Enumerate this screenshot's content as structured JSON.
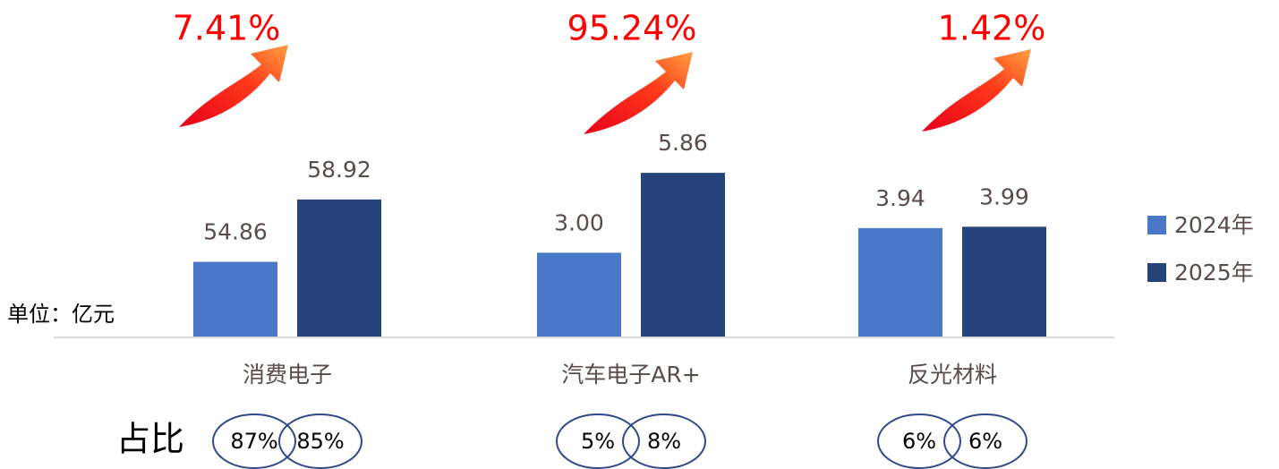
{
  "unit_label": "单位：亿元",
  "share_label": "占比",
  "chart_data": [
    {
      "type": "bar",
      "categories": [
        "消费电子"
      ],
      "ylim": [
        50,
        62
      ],
      "annotation": "7.41%",
      "shares": [
        "87%",
        "85%"
      ],
      "series": [
        {
          "name": "2024年",
          "color": "#4a78c8",
          "values": [
            54.86
          ],
          "value_labels": [
            "54.86"
          ]
        },
        {
          "name": "2025年",
          "color": "#254479",
          "values": [
            58.92
          ],
          "value_labels": [
            "58.92"
          ]
        }
      ]
    },
    {
      "type": "bar",
      "categories": [
        "汽车电子AR+"
      ],
      "ylim": [
        0,
        6.6
      ],
      "annotation": "95.24%",
      "shares": [
        "5%",
        "8%"
      ],
      "series": [
        {
          "name": "2024年",
          "color": "#4a78c8",
          "values": [
            3
          ],
          "value_labels": [
            "3.00"
          ]
        },
        {
          "name": "2025年",
          "color": "#254479",
          "values": [
            5.86
          ],
          "value_labels": [
            "5.86"
          ]
        }
      ]
    },
    {
      "type": "bar",
      "categories": [
        "反光材料"
      ],
      "ylim": [
        0,
        6.7
      ],
      "annotation": "1.42%",
      "shares": [
        "6%",
        "6%"
      ],
      "series": [
        {
          "name": "2024年",
          "color": "#4a78c8",
          "values": [
            3.94
          ],
          "value_labels": [
            "3.94"
          ]
        },
        {
          "name": "2025年",
          "color": "#254479",
          "values": [
            3.99
          ],
          "value_labels": [
            "3.99"
          ]
        }
      ]
    }
  ]
}
